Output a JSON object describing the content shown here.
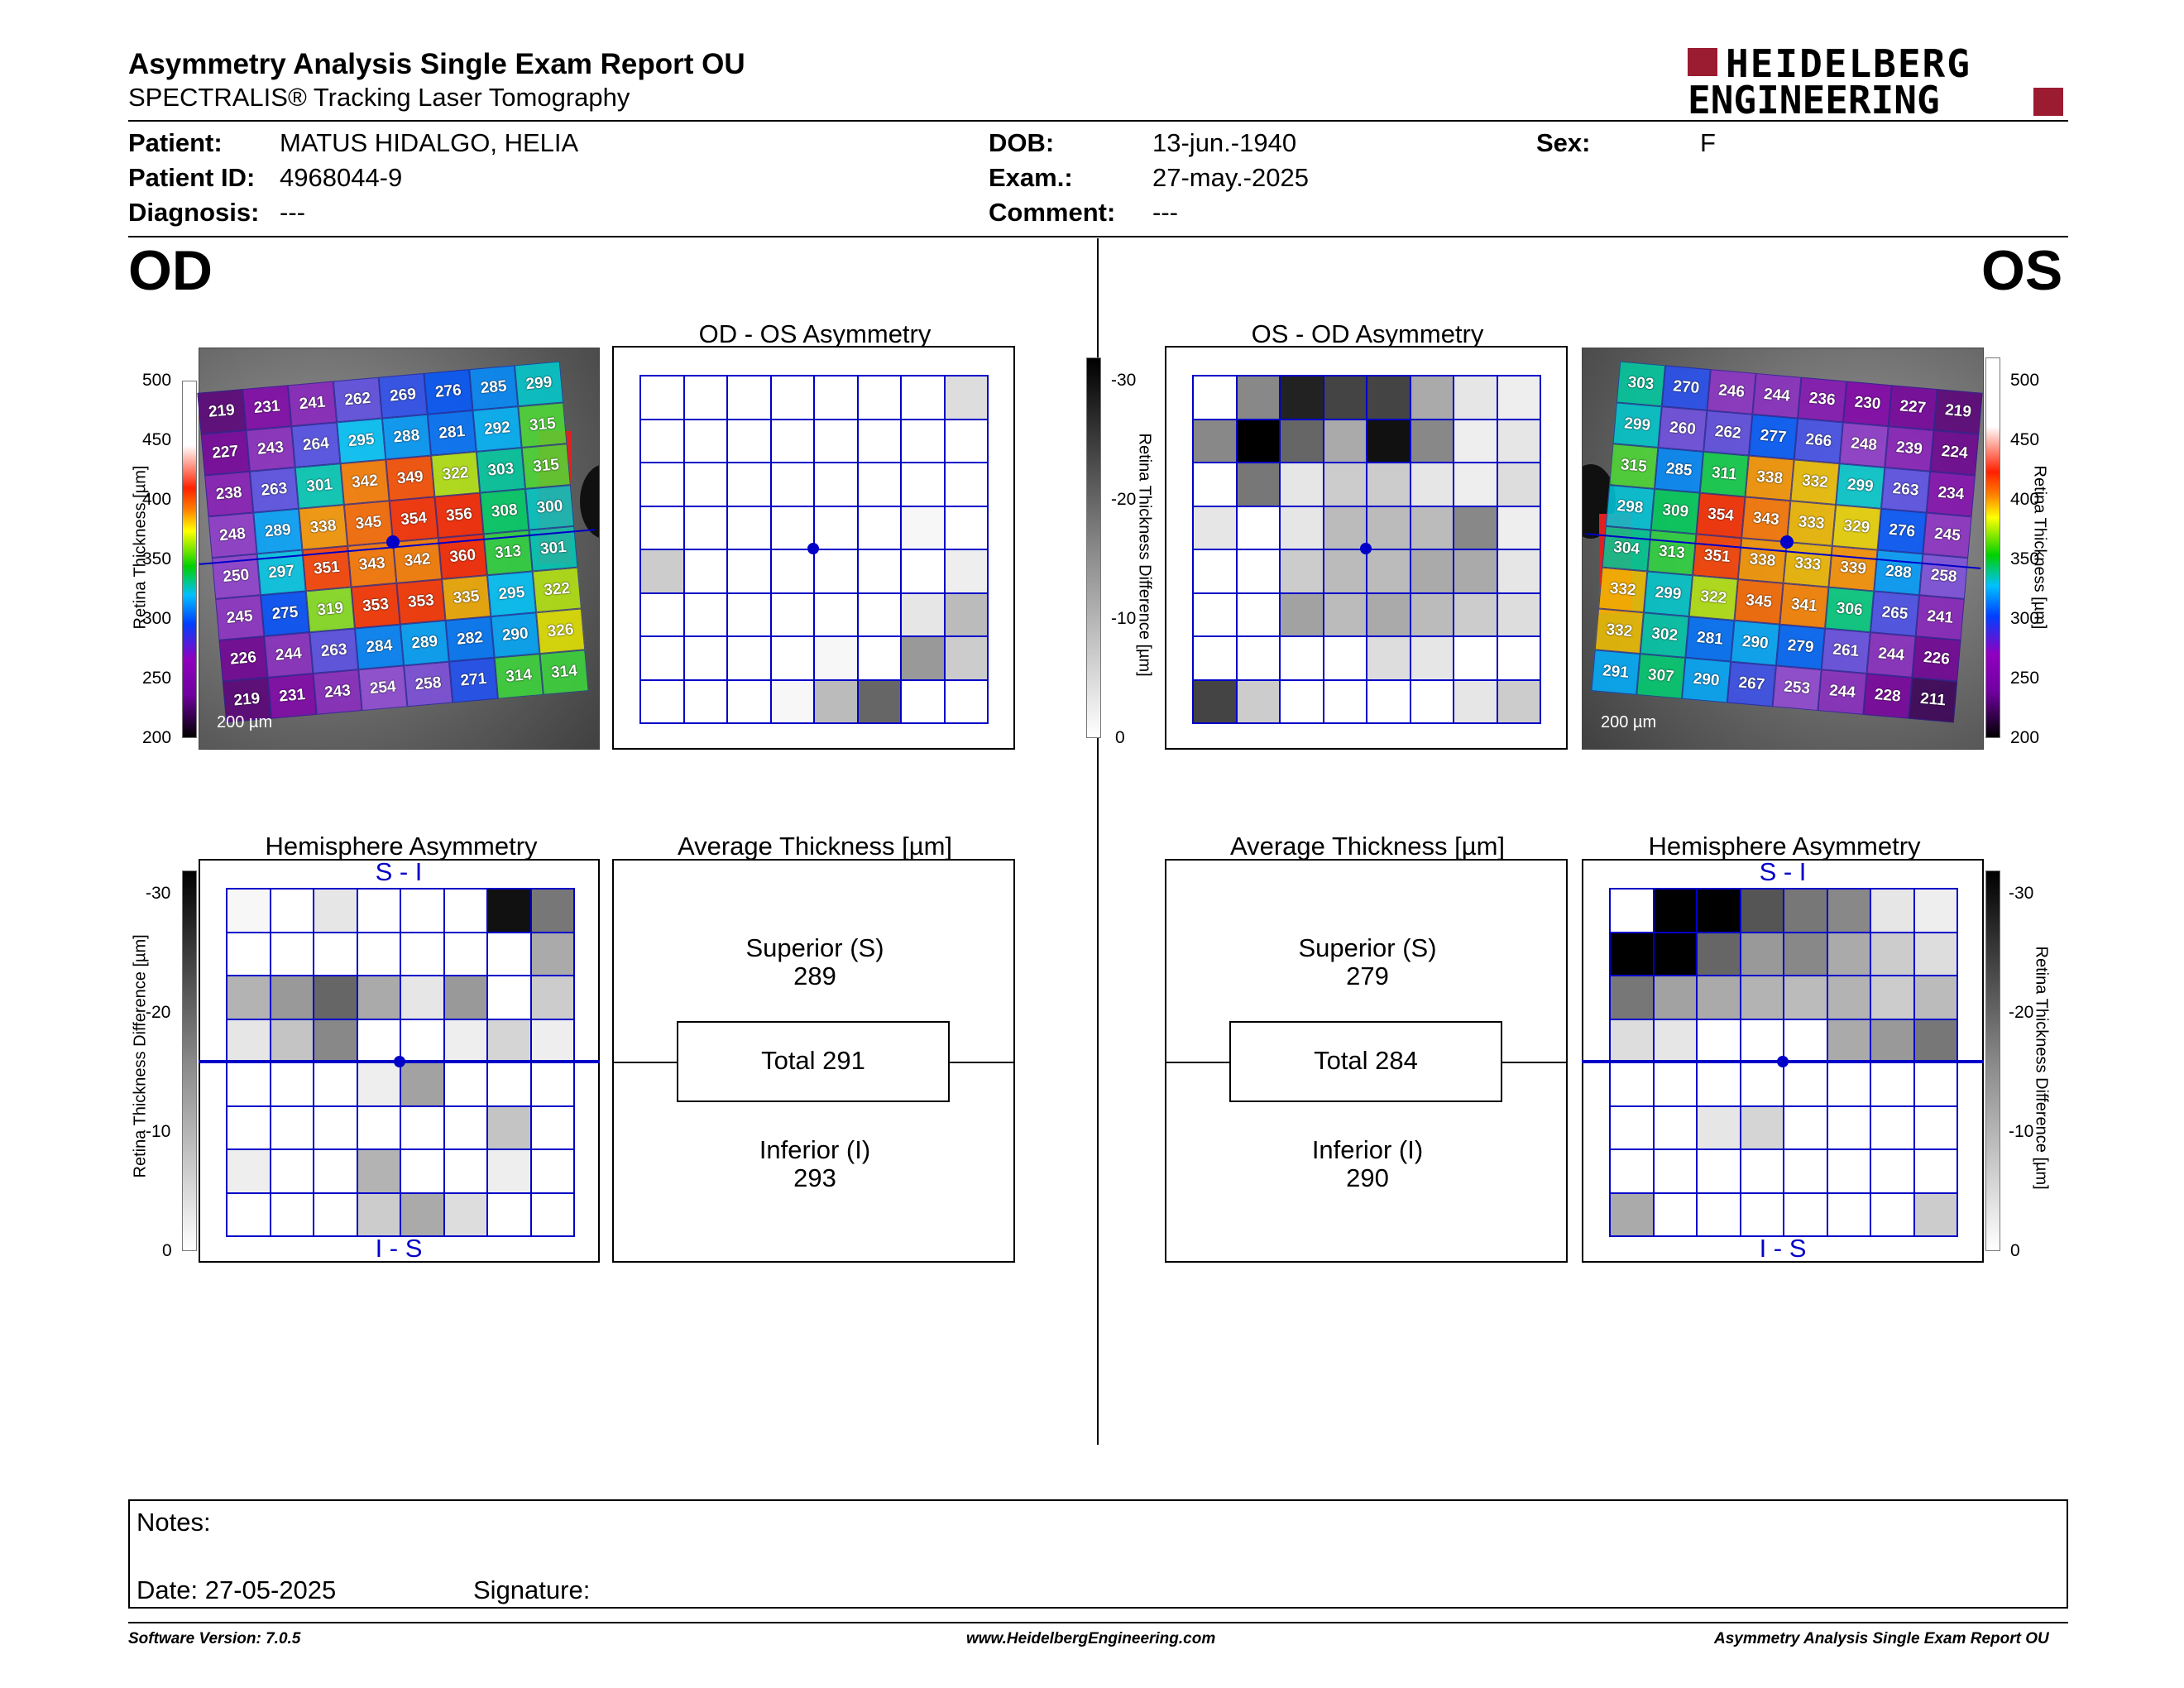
{
  "header": {
    "title": "Asymmetry Analysis Single Exam Report OU",
    "subtitle": "SPECTRALIS® Tracking Laser Tomography",
    "logo_line1": "HEIDELBERG",
    "logo_line2": "ENGINEERING"
  },
  "patient": {
    "patient_label": "Patient:",
    "patient_value": "MATUS HIDALGO, HELIA",
    "id_label": "Patient ID:",
    "id_value": "4968044-9",
    "diagnosis_label": "Diagnosis:",
    "diagnosis_value": "---",
    "dob_label": "DOB:",
    "dob_value": "13-jun.-1940",
    "exam_label": "Exam.:",
    "exam_value": "27-may.-2025",
    "comment_label": "Comment:",
    "comment_value": "---",
    "sex_label": "Sex:",
    "sex_value": "F"
  },
  "od": {
    "label": "OD",
    "asym_title": "OD - OS Asymmetry",
    "hemi_title": "Hemisphere Asymmetry",
    "avg_title": "Average Thickness [µm]",
    "superior_label": "Superior (S)",
    "superior_value": "289",
    "total_label": "Total 291",
    "inferior_label": "Inferior (I)",
    "inferior_value": "293",
    "scale_text": "200 µm",
    "thickness_grid": [
      [
        219,
        231,
        241,
        262,
        269,
        276,
        285,
        299
      ],
      [
        227,
        243,
        264,
        295,
        288,
        281,
        292,
        315
      ],
      [
        238,
        263,
        301,
        342,
        349,
        322,
        303,
        315
      ],
      [
        248,
        289,
        338,
        345,
        354,
        356,
        308,
        300
      ],
      [
        250,
        297,
        351,
        343,
        342,
        360,
        313,
        301
      ],
      [
        245,
        275,
        319,
        353,
        353,
        335,
        295,
        322
      ],
      [
        226,
        244,
        263,
        284,
        289,
        282,
        290,
        326
      ],
      [
        219,
        231,
        243,
        254,
        258,
        271,
        314,
        314
      ]
    ],
    "asym_grid": [
      [
        0,
        0,
        0,
        0,
        0,
        0,
        0,
        4
      ],
      [
        0,
        0,
        0,
        0,
        0,
        0,
        0,
        0
      ],
      [
        0,
        0,
        0,
        0,
        0,
        0,
        0,
        0
      ],
      [
        0,
        0,
        0,
        0,
        0,
        0,
        1,
        0
      ],
      [
        6,
        0,
        0,
        0,
        0,
        0,
        0,
        2
      ],
      [
        0,
        0,
        0,
        0,
        0,
        0,
        3,
        8
      ],
      [
        0,
        0,
        0,
        0,
        1,
        0,
        12,
        6
      ],
      [
        0,
        0,
        0,
        1,
        8,
        18,
        0,
        0
      ]
    ],
    "hemi_grid": [
      [
        1,
        0,
        3,
        0,
        0,
        0,
        28,
        16
      ],
      [
        0,
        0,
        0,
        0,
        0,
        0,
        0,
        10
      ],
      [
        9,
        12,
        18,
        10,
        3,
        12,
        0,
        6
      ],
      [
        3,
        7,
        14,
        0,
        0,
        2,
        5,
        2
      ],
      [
        0,
        0,
        0,
        2,
        11,
        0,
        0,
        0
      ],
      [
        0,
        0,
        0,
        0,
        0,
        0,
        7,
        0
      ],
      [
        2,
        0,
        0,
        9,
        0,
        0,
        2,
        0
      ],
      [
        0,
        0,
        0,
        6,
        10,
        4,
        0,
        0
      ]
    ],
    "hemi_top": "S - I",
    "hemi_bottom": "I - S"
  },
  "os": {
    "label": "OS",
    "asym_title": "OS - OD Asymmetry",
    "hemi_title": "Hemisphere Asymmetry",
    "avg_title": "Average Thickness [µm]",
    "superior_label": "Superior (S)",
    "superior_value": "279",
    "total_label": "Total 284",
    "inferior_label": "Inferior (I)",
    "inferior_value": "290",
    "scale_text": "200 µm",
    "thickness_grid": [
      [
        303,
        270,
        246,
        244,
        236,
        230,
        227,
        219
      ],
      [
        299,
        260,
        262,
        277,
        266,
        248,
        239,
        224
      ],
      [
        315,
        285,
        311,
        338,
        332,
        299,
        263,
        234
      ],
      [
        298,
        309,
        354,
        343,
        333,
        329,
        276,
        245
      ],
      [
        304,
        313,
        351,
        338,
        333,
        339,
        288,
        258
      ],
      [
        332,
        299,
        322,
        345,
        341,
        306,
        265,
        241
      ],
      [
        332,
        302,
        281,
        290,
        279,
        261,
        244,
        226
      ],
      [
        291,
        307,
        290,
        267,
        253,
        244,
        228,
        211
      ]
    ],
    "asym_grid": [
      [
        0,
        14,
        26,
        22,
        22,
        10,
        3,
        2
      ],
      [
        14,
        30,
        18,
        10,
        28,
        14,
        2,
        3
      ],
      [
        0,
        16,
        3,
        6,
        6,
        3,
        2,
        4
      ],
      [
        3,
        0,
        3,
        8,
        8,
        8,
        14,
        2
      ],
      [
        0,
        0,
        6,
        8,
        8,
        10,
        10,
        3
      ],
      [
        0,
        0,
        11,
        8,
        10,
        8,
        6,
        4
      ],
      [
        0,
        0,
        0,
        0,
        4,
        3,
        0,
        0
      ],
      [
        22,
        6,
        0,
        0,
        0,
        0,
        3,
        6
      ]
    ],
    "hemi_grid": [
      [
        0,
        30,
        30,
        20,
        16,
        14,
        3,
        2
      ],
      [
        30,
        30,
        18,
        12,
        14,
        10,
        6,
        4
      ],
      [
        16,
        11,
        10,
        9,
        8,
        9,
        6,
        8
      ],
      [
        4,
        3,
        0,
        0,
        0,
        10,
        12,
        16
      ],
      [
        0,
        0,
        0,
        0,
        0,
        0,
        0,
        0
      ],
      [
        0,
        0,
        3,
        5,
        0,
        0,
        0,
        0
      ],
      [
        0,
        0,
        0,
        0,
        0,
        0,
        0,
        0
      ],
      [
        10,
        0,
        0,
        0,
        0,
        0,
        0,
        6
      ]
    ],
    "hemi_top": "S - I",
    "hemi_bottom": "I - S"
  },
  "scales": {
    "thickness_label": "Retina Thickness [µm]",
    "thickness_ticks": [
      "500",
      "450",
      "400",
      "350",
      "300",
      "250",
      "200"
    ],
    "diff_label": "Retina Thickness Difference [µm]",
    "diff_ticks": [
      "-30",
      "-20",
      "-10",
      "0"
    ]
  },
  "notes": {
    "notes_label": "Notes:",
    "date_label": "Date: 27-05-2025",
    "signature_label": "Signature:"
  },
  "footer": {
    "software": "Software Version: 7.0.5",
    "website": "www.HeidelbergEngineering.com",
    "report": "Asymmetry Analysis Single Exam Report OU"
  },
  "colors": {
    "grid_blue": "#0000c8",
    "logo_red": "#9b1b30"
  }
}
